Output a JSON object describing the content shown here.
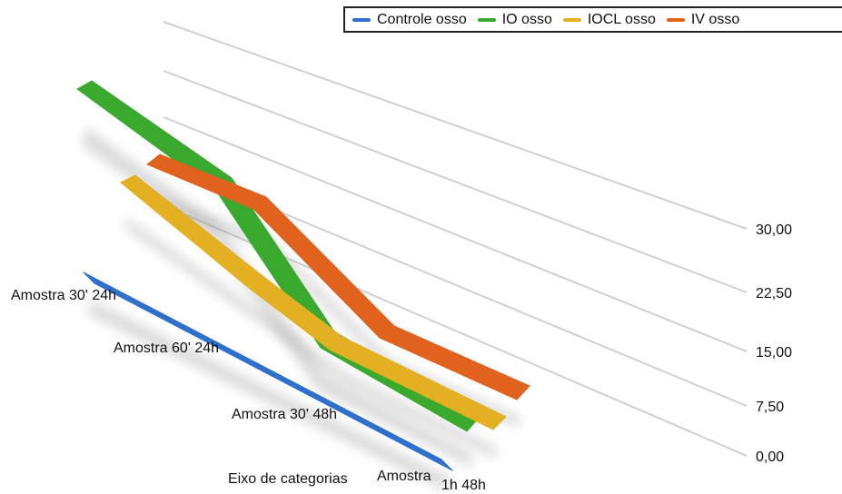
{
  "chart_data": {
    "type": "line",
    "style": "3d",
    "xlabel": "Eixo de categorias",
    "categories": [
      "Amostra 30' 24h",
      "Amostra 60' 24h",
      "Amostra 30' 48h",
      "Amostra 1h 48h"
    ],
    "yticks": [
      "0,00",
      "7,50",
      "15,00",
      "22,50",
      "30,00"
    ],
    "ylim": [
      0,
      30
    ],
    "grid": true,
    "legend_position": "top-right",
    "series": [
      {
        "name": "Controle osso",
        "color": "#2f6fce",
        "values": [
          null,
          null,
          null,
          null
        ]
      },
      {
        "name": "IO osso",
        "color": "#3aaa2e",
        "values": [
          null,
          null,
          null,
          null
        ]
      },
      {
        "name": "IOCL osso",
        "color": "#e3b021",
        "values": [
          null,
          null,
          null,
          null
        ]
      },
      {
        "name": "IV osso",
        "color": "#e0621d",
        "values": [
          null,
          null,
          null,
          null
        ]
      }
    ]
  }
}
